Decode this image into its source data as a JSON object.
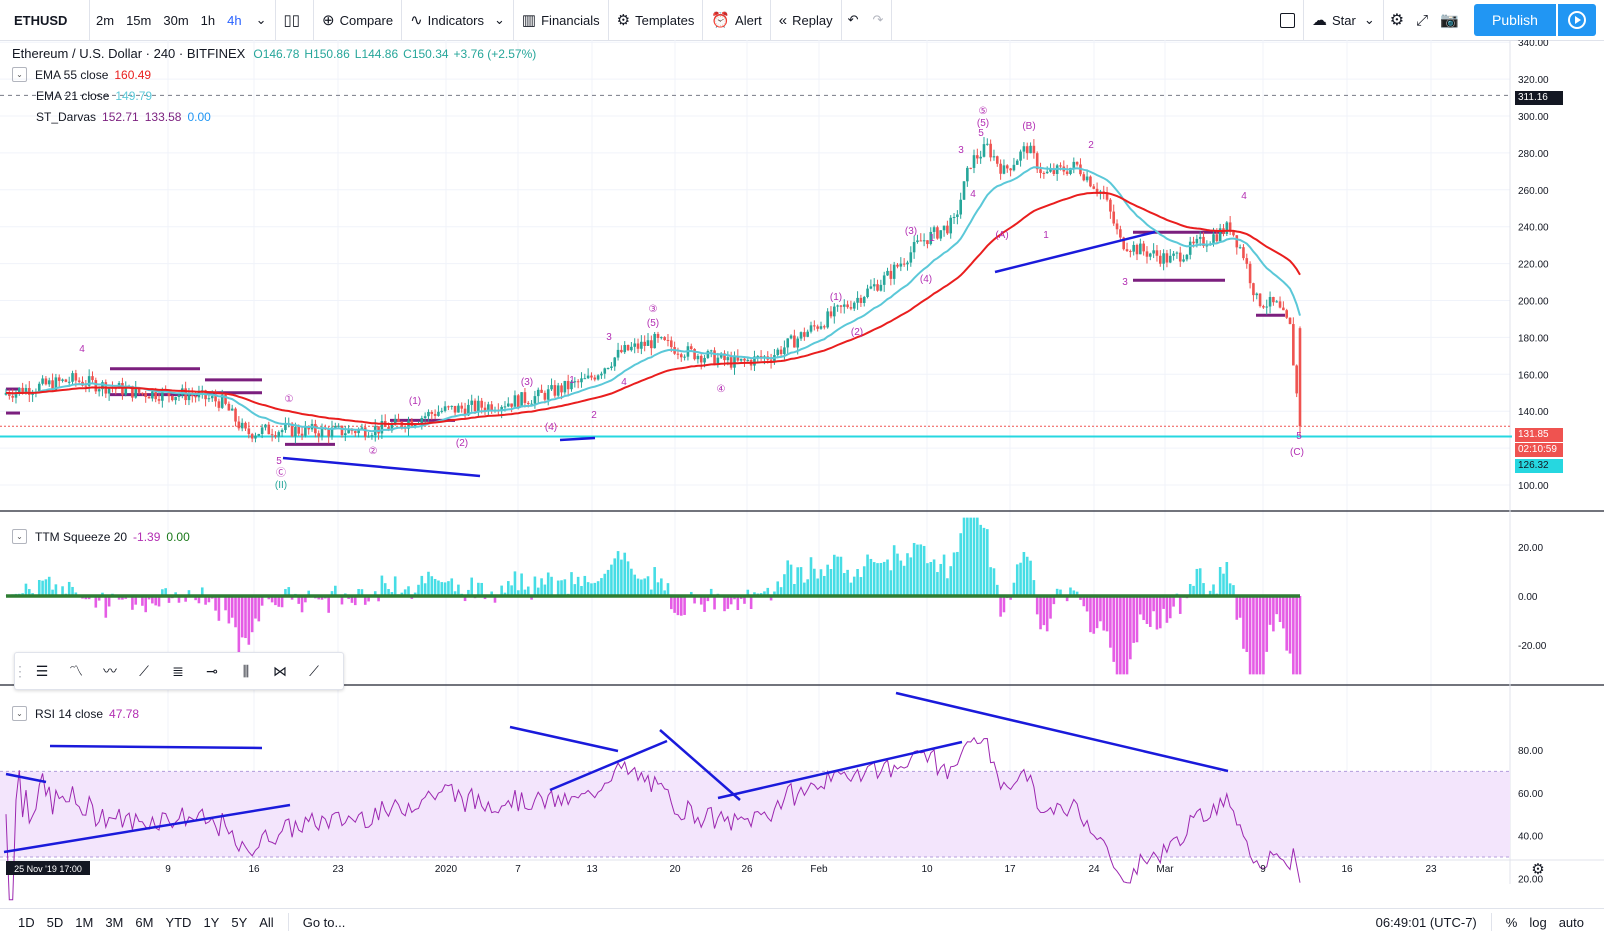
{
  "toolbar": {
    "symbol": "ETHUSD",
    "intervals": [
      "2m",
      "15m",
      "30m",
      "1h",
      "4h"
    ],
    "active_interval": "4h",
    "compare": "Compare",
    "indicators": "Indicators",
    "financials": "Financials",
    "templates": "Templates",
    "alert": "Alert",
    "replay": "Replay",
    "layout_name": "Star",
    "publish": "Publish"
  },
  "legend": {
    "title": "Ethereum / U.S. Dollar · 240 · BITFINEX",
    "open": "O146.78",
    "high": "H150.86",
    "low": "L144.86",
    "close": "C150.34",
    "change": "+3.76 (+2.57%)",
    "ema55_label": "EMA 55 close",
    "ema55_value": "160.49",
    "ema21_label": "EMA 21 close",
    "ema21_value": "149.79",
    "darvas_label": "ST_Darvas",
    "darvas_v1": "152.71",
    "darvas_v2": "133.58",
    "darvas_v3": "0.00",
    "ttm_label": "TTM Squeeze 20",
    "ttm_v1": "-1.39",
    "ttm_v2": "0.00",
    "rsi_label": "RSI 14 close",
    "rsi_value": "47.78"
  },
  "price_axis": {
    "ticks": [
      "340.00",
      "320.00",
      "300.00",
      "280.00",
      "260.00",
      "240.00",
      "220.00",
      "200.00",
      "180.00",
      "160.00",
      "140.00",
      "120.00",
      "100.00"
    ],
    "crosshair_price": "311.16",
    "last_price": "131.85",
    "countdown": "02:10:59",
    "support_price": "126.32"
  },
  "ttm_axis": {
    "ticks": [
      "20.00",
      "0.00",
      "-20.00"
    ]
  },
  "rsi_axis": {
    "ticks": [
      "80.00",
      "60.00",
      "40.00",
      "20.00"
    ]
  },
  "time_axis": {
    "cursor_label": "25 Nov '19   17:00",
    "ticks": [
      "9",
      "16",
      "23",
      "2020",
      "7",
      "13",
      "20",
      "26",
      "Feb",
      "10",
      "17",
      "24",
      "Mar",
      "9",
      "16",
      "23"
    ]
  },
  "wave_labels": [
    "4",
    "①",
    "5",
    "Ⓒ",
    "(II)",
    "②",
    "(1)",
    "(2)",
    "(3)",
    "1",
    "(4)",
    "2",
    "3",
    "③",
    "(5)",
    "4",
    "④",
    "(1)",
    "(2)",
    "(3)",
    "1",
    "(4)",
    "⑤",
    "(5)",
    "5",
    "3",
    "4",
    "(B)",
    "2",
    "(A)",
    "1",
    "3",
    "4",
    "5",
    "(C)"
  ],
  "bottom": {
    "ranges": [
      "1D",
      "5D",
      "1M",
      "3M",
      "6M",
      "YTD",
      "1Y",
      "5Y",
      "All"
    ],
    "goto": "Go to...",
    "clock": "06:49:01 (UTC-7)",
    "percent": "%",
    "log": "log",
    "auto": "auto"
  },
  "colors": {
    "up": "#26a69a",
    "down": "#ef5350",
    "ema55": "#e91e1e",
    "ema21": "#5bc8d8",
    "darvas": "#7b1f7e",
    "trend": "#1a1adb",
    "accent": "#2196f3",
    "wave": "#b32fb3"
  }
}
